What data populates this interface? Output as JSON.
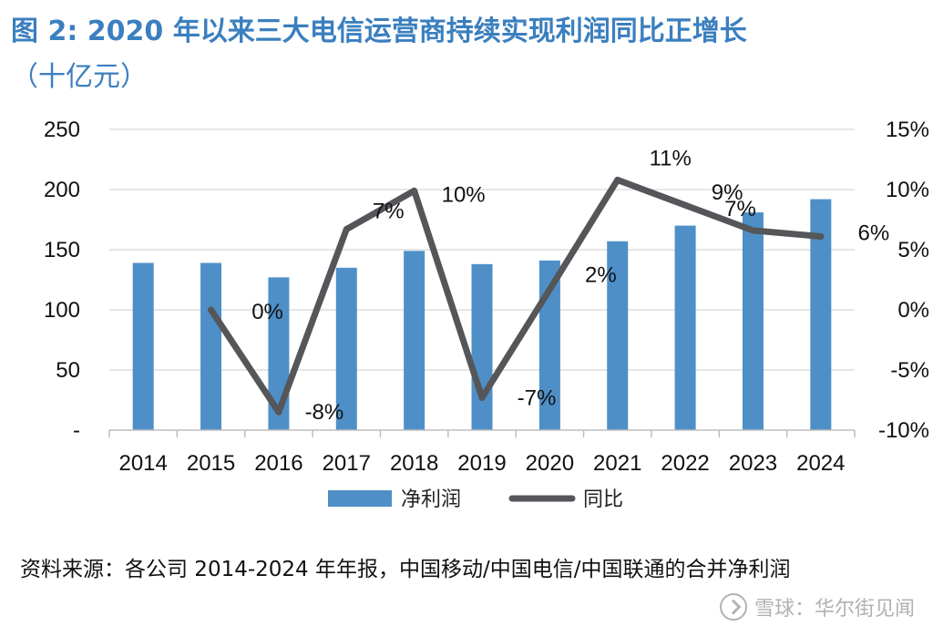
{
  "title": {
    "line1": "图 2: 2020 年以来三大电信运营商持续实现利润同比正增长",
    "line2": "（十亿元）"
  },
  "source": "资料来源：各公司 2014-2024 年年报，中国移动/中国电信/中国联通的合并净利润",
  "watermark": "雪球：华尔街见闻",
  "colors": {
    "bar": "#4f8fc7",
    "line": "#555659",
    "title": "#3b7fbf"
  },
  "chart_data": {
    "type": "bar",
    "categories": [
      "2014",
      "2015",
      "2016",
      "2017",
      "2018",
      "2019",
      "2020",
      "2021",
      "2022",
      "2023",
      "2024"
    ],
    "series": [
      {
        "name": "净利润",
        "type": "bar",
        "axis": "left",
        "values": [
          139,
          139,
          127,
          135,
          149,
          138,
          141,
          157,
          170,
          181,
          192
        ]
      },
      {
        "name": "同比",
        "type": "line",
        "axis": "right",
        "x": [
          "2015",
          "2016",
          "2017",
          "2018",
          "2019",
          "2020",
          "2021",
          "2022",
          "2023",
          "2024"
        ],
        "values": [
          0.0,
          -8.5,
          6.7,
          9.9,
          -7.3,
          1.7,
          10.8,
          8.7,
          6.6,
          6.1
        ]
      }
    ],
    "data_labels": [
      {
        "x": "2015",
        "text": "0%"
      },
      {
        "x": "2016",
        "text": "-8%"
      },
      {
        "x": "2017",
        "text": "7%"
      },
      {
        "x": "2018",
        "text": "10%"
      },
      {
        "x": "2019",
        "text": "-7%"
      },
      {
        "x": "2020",
        "text": "2%"
      },
      {
        "x": "2021",
        "text": "11%"
      },
      {
        "x": "2022",
        "text": "9%"
      },
      {
        "x": "2023",
        "text": "7%"
      },
      {
        "x": "2024",
        "text": "6%"
      }
    ],
    "y_left": {
      "ylim": [
        0,
        250
      ],
      "ticks": [
        0,
        50,
        100,
        150,
        200,
        250
      ],
      "tick_labels": [
        "-",
        "50",
        "100",
        "150",
        "200",
        "250"
      ]
    },
    "y_right": {
      "ylim": [
        -10,
        15
      ],
      "ticks": [
        -10,
        -5,
        0,
        5,
        10,
        15
      ],
      "tick_labels": [
        "-10%",
        "-5%",
        "0%",
        "5%",
        "10%",
        "15%"
      ]
    },
    "grid": true,
    "legend_position": "bottom"
  }
}
